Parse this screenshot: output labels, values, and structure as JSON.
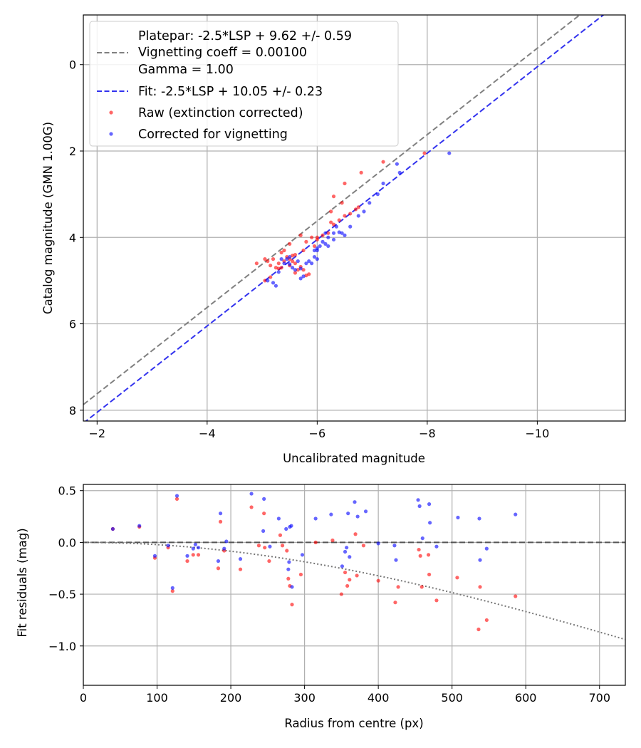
{
  "colors": {
    "raw": "#ff0000",
    "corrected": "#0000ff",
    "platepar_line": "#808080",
    "fit_line": "#3333ee",
    "zero_line": "#555555",
    "grid": "#b0b0b0"
  },
  "chart_data": [
    {
      "type": "scatter",
      "title": "",
      "xlabel": "Uncalibrated magnitude",
      "ylabel": "Catalog magnitude (GMN 1.00G)",
      "xlim": [
        -1.75,
        -11.6
      ],
      "ylim": [
        8.25,
        -1.15
      ],
      "xticks": [
        -2,
        -4,
        -6,
        -8,
        -10
      ],
      "xtick_labels": [
        "−2",
        "−4",
        "−6",
        "−8",
        "−10"
      ],
      "yticks": [
        0,
        2,
        4,
        6,
        8
      ],
      "ytick_labels": [
        "0",
        "2",
        "4",
        "6",
        "8"
      ],
      "grid": true,
      "legend_position": "top-left",
      "legend": [
        {
          "lines": [
            "Platepar: -2.5*LSP + 9.62 +/- 0.59",
            "Vignetting coeff = 0.00100",
            "Gamma = 1.00"
          ],
          "style": "gray-dashed"
        },
        {
          "lines": [
            "Fit: -2.5*LSP + 10.05 +/- 0.23"
          ],
          "style": "blue-dashed"
        },
        {
          "lines": [
            "Raw (extinction corrected)"
          ],
          "style": "red-dot"
        },
        {
          "lines": [
            "Corrected for vignetting"
          ],
          "style": "blue-dot"
        }
      ],
      "lines": [
        {
          "name": "Platepar",
          "offset": 9.62,
          "color": "platepar_line"
        },
        {
          "name": "Fit",
          "offset": 10.05,
          "color": "fit_line"
        }
      ],
      "series": [
        {
          "name": "Raw (extinction corrected)",
          "color": "raw",
          "points": [
            [
              -5.05,
              4.5
            ],
            [
              -5.1,
              4.55
            ],
            [
              -5.2,
              4.5
            ],
            [
              -4.9,
              4.6
            ],
            [
              -5.15,
              4.65
            ],
            [
              -5.25,
              4.7
            ],
            [
              -5.3,
              4.72
            ],
            [
              -5.35,
              4.7
            ],
            [
              -5.4,
              4.55
            ],
            [
              -5.45,
              4.45
            ],
            [
              -5.5,
              4.5
            ],
            [
              -5.55,
              4.42
            ],
            [
              -5.6,
              4.6
            ],
            [
              -5.65,
              4.75
            ],
            [
              -5.7,
              4.68
            ],
            [
              -5.75,
              4.75
            ],
            [
              -5.8,
              4.88
            ],
            [
              -5.85,
              4.85
            ],
            [
              -5.75,
              4.3
            ],
            [
              -5.7,
              3.95
            ],
            [
              -5.9,
              4.0
            ],
            [
              -5.95,
              4.2
            ],
            [
              -6.0,
              4.05
            ],
            [
              -6.1,
              3.95
            ],
            [
              -6.2,
              3.9
            ],
            [
              -6.25,
              3.65
            ],
            [
              -6.3,
              3.7
            ],
            [
              -6.4,
              3.6
            ],
            [
              -6.5,
              3.5
            ],
            [
              -6.6,
              3.45
            ],
            [
              -6.7,
              3.35
            ],
            [
              -6.75,
              3.3
            ],
            [
              -6.45,
              3.2
            ],
            [
              -6.3,
              3.05
            ],
            [
              -6.25,
              3.4
            ],
            [
              -6.5,
              2.75
            ],
            [
              -6.8,
              2.5
            ],
            [
              -7.2,
              2.25
            ],
            [
              -7.95,
              2.05
            ],
            [
              -5.15,
              4.92
            ],
            [
              -5.05,
              5.0
            ],
            [
              -5.35,
              4.35
            ],
            [
              -5.4,
              4.3
            ],
            [
              -5.5,
              4.15
            ],
            [
              -5.6,
              4.4
            ],
            [
              -5.3,
              4.6
            ],
            [
              -5.5,
              4.65
            ],
            [
              -5.6,
              4.82
            ],
            [
              -5.55,
              4.55
            ],
            [
              -5.8,
              4.1
            ],
            [
              -6.0,
              4.0
            ]
          ]
        },
        {
          "name": "Corrected for vignetting",
          "color": "corrected",
          "points": [
            [
              -5.1,
              5.0
            ],
            [
              -5.2,
              5.05
            ],
            [
              -5.3,
              4.8
            ],
            [
              -5.4,
              4.6
            ],
            [
              -5.45,
              4.5
            ],
            [
              -5.5,
              4.62
            ],
            [
              -5.55,
              4.7
            ],
            [
              -5.6,
              4.75
            ],
            [
              -5.7,
              4.72
            ],
            [
              -5.75,
              4.9
            ],
            [
              -5.8,
              4.6
            ],
            [
              -5.85,
              4.55
            ],
            [
              -5.9,
              4.6
            ],
            [
              -5.95,
              4.45
            ],
            [
              -6.0,
              4.3
            ],
            [
              -6.05,
              4.2
            ],
            [
              -6.1,
              4.1
            ],
            [
              -6.15,
              4.15
            ],
            [
              -6.2,
              4.0
            ],
            [
              -6.3,
              3.9
            ],
            [
              -6.4,
              3.88
            ],
            [
              -6.5,
              3.95
            ],
            [
              -6.6,
              3.75
            ],
            [
              -6.75,
              3.5
            ],
            [
              -6.85,
              3.4
            ],
            [
              -6.95,
              3.2
            ],
            [
              -7.1,
              3.0
            ],
            [
              -7.2,
              2.75
            ],
            [
              -7.5,
              2.5
            ],
            [
              -7.45,
              2.3
            ],
            [
              -8.4,
              2.05
            ],
            [
              -5.25,
              5.12
            ],
            [
              -6.2,
              4.2
            ],
            [
              -5.95,
              4.3
            ],
            [
              -6.0,
              4.25
            ],
            [
              -5.5,
              4.45
            ],
            [
              -6.3,
              4.05
            ],
            [
              -5.7,
              4.95
            ],
            [
              -6.15,
              3.9
            ],
            [
              -6.45,
              3.9
            ],
            [
              -6.35,
              3.75
            ],
            [
              -5.35,
              4.5
            ],
            [
              -5.65,
              4.55
            ],
            [
              -6.0,
              4.5
            ]
          ]
        }
      ]
    },
    {
      "type": "scatter",
      "title": "",
      "xlabel": "Radius from centre (px)",
      "ylabel": "Fit residuals (mag)",
      "xlim": [
        0,
        735
      ],
      "ylim": [
        -1.38,
        0.56
      ],
      "xticks": [
        0,
        100,
        200,
        300,
        400,
        500,
        600,
        700
      ],
      "xtick_labels": [
        "0",
        "100",
        "200",
        "300",
        "400",
        "500",
        "600",
        "700"
      ],
      "yticks": [
        0.5,
        0.0,
        -0.5,
        -1.0
      ],
      "ytick_labels": [
        "0.5",
        "0.0",
        "−0.5",
        "−1.0"
      ],
      "grid": true,
      "lines": [
        {
          "name": "zero",
          "kind": "horizontal-dashed",
          "y": 0.0
        },
        {
          "name": "vignetting",
          "kind": "dotted-curve",
          "coeff": 0.001
        }
      ],
      "series": [
        {
          "name": "Raw (extinction corrected)",
          "color": "raw",
          "points": [
            [
              40,
              0.13
            ],
            [
              76,
              0.15
            ],
            [
              97,
              -0.15
            ],
            [
              115,
              -0.05
            ],
            [
              121,
              -0.47
            ],
            [
              127,
              0.42
            ],
            [
              141,
              -0.18
            ],
            [
              149,
              -0.12
            ],
            [
              156,
              -0.12
            ],
            [
              183,
              -0.25
            ],
            [
              186,
              0.2
            ],
            [
              191,
              -0.08
            ],
            [
              213,
              -0.26
            ],
            [
              228,
              0.34
            ],
            [
              238,
              -0.03
            ],
            [
              245,
              0.28
            ],
            [
              246,
              -0.05
            ],
            [
              252,
              -0.18
            ],
            [
              267,
              0.07
            ],
            [
              270,
              -0.03
            ],
            [
              276,
              -0.08
            ],
            [
              278,
              -0.35
            ],
            [
              280,
              -0.42
            ],
            [
              283,
              -0.6
            ],
            [
              295,
              -0.31
            ],
            [
              315,
              0.0
            ],
            [
              338,
              0.02
            ],
            [
              350,
              -0.5
            ],
            [
              355,
              -0.29
            ],
            [
              358,
              -0.42
            ],
            [
              361,
              -0.36
            ],
            [
              369,
              0.08
            ],
            [
              371,
              -0.32
            ],
            [
              380,
              -0.03
            ],
            [
              400,
              -0.37
            ],
            [
              423,
              -0.58
            ],
            [
              427,
              -0.43
            ],
            [
              455,
              -0.07
            ],
            [
              457,
              -0.13
            ],
            [
              459,
              -0.43
            ],
            [
              468,
              -0.12
            ],
            [
              469,
              -0.31
            ],
            [
              479,
              -0.56
            ],
            [
              507,
              -0.34
            ],
            [
              536,
              -0.84
            ],
            [
              538,
              -0.43
            ],
            [
              547,
              -0.75
            ],
            [
              586,
              -0.52
            ]
          ]
        },
        {
          "name": "Corrected for vignetting",
          "color": "corrected",
          "points": [
            [
              40,
              0.13
            ],
            [
              76,
              0.16
            ],
            [
              97,
              -0.13
            ],
            [
              115,
              -0.03
            ],
            [
              121,
              -0.44
            ],
            [
              127,
              0.45
            ],
            [
              141,
              -0.13
            ],
            [
              149,
              -0.06
            ],
            [
              152,
              -0.02
            ],
            [
              156,
              -0.05
            ],
            [
              183,
              -0.18
            ],
            [
              186,
              0.28
            ],
            [
              191,
              -0.06
            ],
            [
              194,
              0.01
            ],
            [
              213,
              -0.16
            ],
            [
              228,
              0.47
            ],
            [
              244,
              0.11
            ],
            [
              245,
              0.42
            ],
            [
              253,
              -0.04
            ],
            [
              265,
              0.23
            ],
            [
              275,
              0.13
            ],
            [
              278,
              -0.26
            ],
            [
              279,
              -0.19
            ],
            [
              280,
              0.15
            ],
            [
              282,
              0.16
            ],
            [
              283,
              -0.43
            ],
            [
              297,
              -0.12
            ],
            [
              315,
              0.23
            ],
            [
              336,
              0.27
            ],
            [
              351,
              -0.23
            ],
            [
              355,
              -0.09
            ],
            [
              357,
              -0.05
            ],
            [
              359,
              0.28
            ],
            [
              361,
              -0.14
            ],
            [
              368,
              0.39
            ],
            [
              372,
              0.25
            ],
            [
              383,
              0.3
            ],
            [
              400,
              -0.01
            ],
            [
              422,
              -0.03
            ],
            [
              424,
              -0.17
            ],
            [
              454,
              0.41
            ],
            [
              456,
              0.35
            ],
            [
              460,
              0.04
            ],
            [
              469,
              0.37
            ],
            [
              470,
              0.19
            ],
            [
              479,
              -0.04
            ],
            [
              508,
              0.24
            ],
            [
              537,
              0.23
            ],
            [
              538,
              -0.17
            ],
            [
              547,
              -0.06
            ],
            [
              586,
              0.27
            ]
          ]
        }
      ]
    }
  ]
}
